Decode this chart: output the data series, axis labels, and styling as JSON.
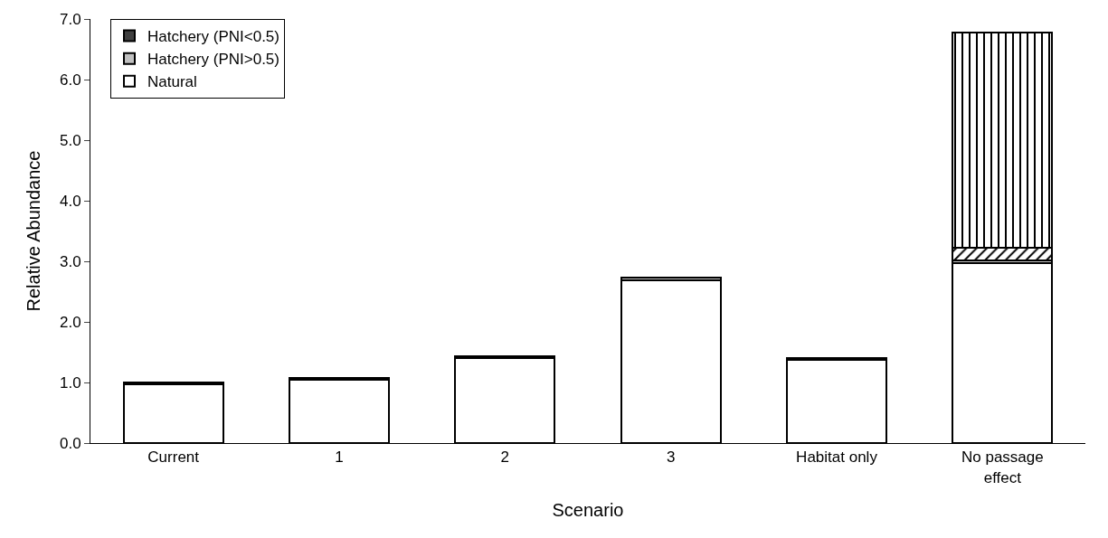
{
  "chart_data": {
    "type": "bar",
    "stacked": true,
    "xlabel": "Scenario",
    "ylabel": "Relative Abundance",
    "categories": [
      "Current",
      "1",
      "2",
      "3",
      "Habitat only",
      "No passage effect"
    ],
    "series": [
      {
        "name": "Natural",
        "color": "#ffffff",
        "values": [
          0.97,
          1.04,
          1.4,
          2.69,
          1.38,
          2.97
        ]
      },
      {
        "name": "Hatchery (PNI>0.5)",
        "color": "#c0c0c0",
        "values": [
          0,
          0,
          0,
          0.04,
          0,
          0.05
        ]
      },
      {
        "name": "Hatchery (PNI<0.5)",
        "color": "#404040",
        "values": [
          0.03,
          0.03,
          0.03,
          0,
          0.03,
          0
        ]
      },
      {
        "color": "#000000",
        "values": [
          0,
          0,
          0,
          0,
          0,
          0.2
        ]
      },
      {
        "color": "#000000",
        "values": [
          0,
          0,
          0,
          0,
          0,
          3.55
        ]
      }
    ],
    "ylim": [
      0,
      7
    ],
    "yticks": [
      {
        "value": 0,
        "label": "0.0"
      },
      {
        "value": 1,
        "label": "1.0"
      },
      {
        "value": 2,
        "label": "2.0"
      },
      {
        "value": 3,
        "label": "3.0"
      },
      {
        "value": 4,
        "label": "4.0"
      },
      {
        "value": 5,
        "label": "5.0"
      },
      {
        "value": 6,
        "label": "6.0"
      },
      {
        "value": 7,
        "label": "7.0"
      }
    ],
    "grid": false,
    "legend": "top left"
  }
}
